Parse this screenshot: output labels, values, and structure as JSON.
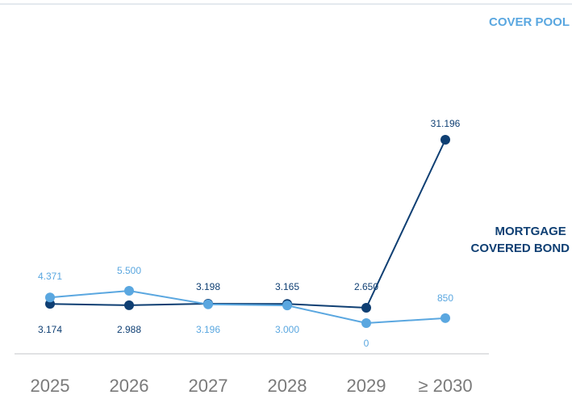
{
  "colors": {
    "cover_pool": "#5aa7e0",
    "mortgage_covered_bond": "#0f3f73"
  },
  "chart_data": {
    "type": "line",
    "categories": [
      "2025",
      "2026",
      "2027",
      "2028",
      "2029",
      "≥ 2030"
    ],
    "series": [
      {
        "name": "COVER POOL",
        "key": "cover_pool",
        "values": [
          4371,
          5500,
          3196,
          3000,
          0,
          850
        ],
        "labels": [
          "4.371",
          "5.500",
          "3.196",
          "3.000",
          "0",
          "850"
        ]
      },
      {
        "name": "MORTGAGE COVERED BOND",
        "name_lines": [
          "MORTGAGE",
          "COVERED BOND"
        ],
        "key": "mortgage_covered_bond",
        "values": [
          3174,
          2988,
          3198,
          3165,
          2650,
          31196
        ],
        "labels": [
          "3.174",
          "2.988",
          "3.198",
          "3.165",
          "2.650",
          "31.196"
        ]
      }
    ],
    "grid": false
  }
}
